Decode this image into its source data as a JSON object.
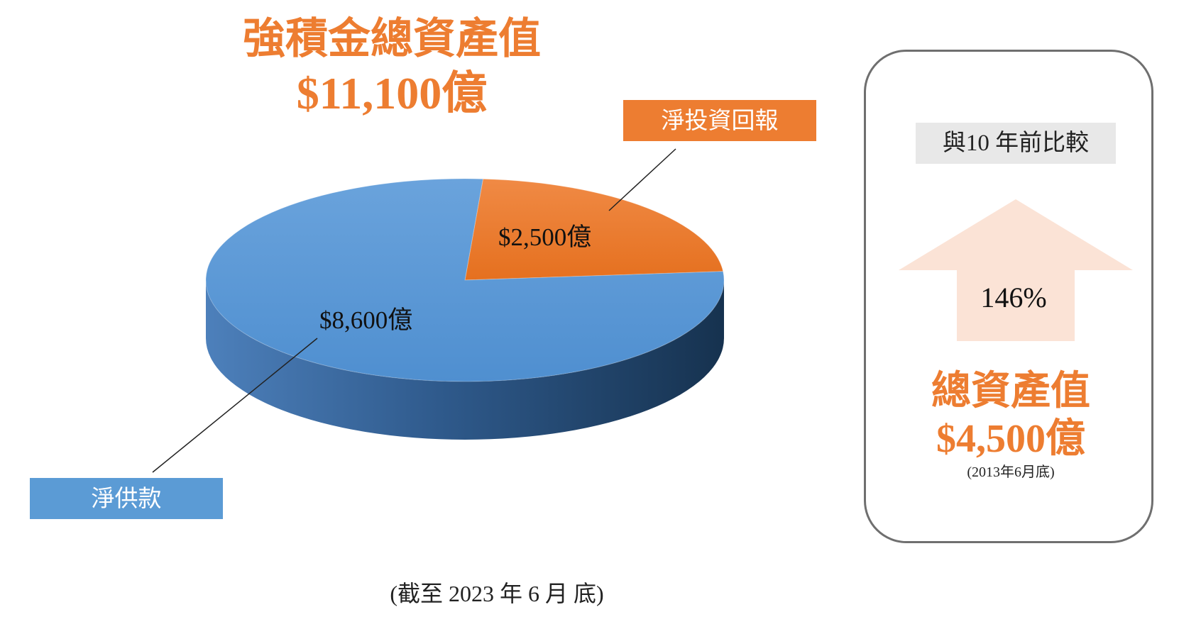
{
  "header": {
    "title": "強積金總資產值",
    "total": "$11,100億"
  },
  "colors": {
    "accent_orange": "#ed7d31",
    "contributions_blue": "#5b9bd5",
    "arrow_fill": "#fbe3d6"
  },
  "chart_data": {
    "type": "pie",
    "unit": "億",
    "slices": [
      {
        "name": "淨投資回報",
        "value": 2500,
        "value_label": "$2,500億"
      },
      {
        "name": "淨供款",
        "value": 8600,
        "value_label": "$8,600億"
      }
    ],
    "total": 11100
  },
  "footnote": "(截至 2023 年 6 月 底)",
  "comparison": {
    "badge": "與10 年前比較",
    "growth": "146%",
    "past_title": "總資產值",
    "past_value": "$4,500億",
    "past_date": "(2013年6月底)",
    "arrow_icon": "up-arrow-icon"
  }
}
